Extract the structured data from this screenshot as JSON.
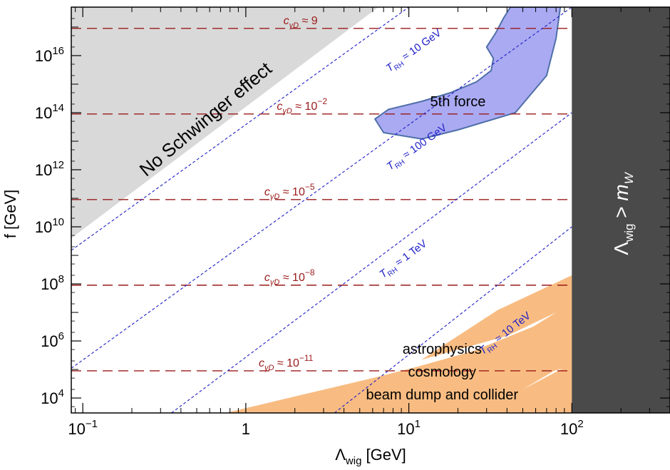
{
  "chart_data": {
    "type": "area",
    "xscale": "log",
    "yscale": "log",
    "xlim": [
      0.085,
      400
    ],
    "ylim": [
      3000,
      5e+17
    ],
    "xlabel": {
      "main": "Λ",
      "sub": "wig",
      "rest": " [GeV]"
    },
    "ylabel": "f [GeV]",
    "x_ticks": [
      {
        "value": 0.1,
        "base": "10",
        "exp": "−1"
      },
      {
        "value": 1,
        "base": "1",
        "exp": ""
      },
      {
        "value": 10,
        "base": "10",
        "exp": "1"
      },
      {
        "value": 100,
        "base": "10",
        "exp": "2"
      }
    ],
    "y_ticks": [
      {
        "value": 10000.0,
        "base": "10",
        "exp": "4"
      },
      {
        "value": 1000000.0,
        "base": "10",
        "exp": "6"
      },
      {
        "value": 100000000.0,
        "base": "10",
        "exp": "8"
      },
      {
        "value": 10000000000.0,
        "base": "10",
        "exp": "10"
      },
      {
        "value": 1000000000000.0,
        "base": "10",
        "exp": "12"
      },
      {
        "value": 100000000000000.0,
        "base": "10",
        "exp": "14"
      },
      {
        "value": 1e+16,
        "base": "10",
        "exp": "16"
      }
    ],
    "regions": {
      "no_schwinger": {
        "label": "No Schwinger effect",
        "color": "#d9d9d9",
        "points": [
          [
            0.085,
            5e+17
          ],
          [
            6.5,
            5e+17
          ],
          [
            0.085,
            4000000000.0
          ]
        ]
      },
      "fifth_force": {
        "label": "5th force",
        "color": "#aaaaf2",
        "edge": "#4f6fa8",
        "points": [
          [
            42,
            5e+17
          ],
          [
            85,
            5e+17
          ],
          [
            80,
            4e+16
          ],
          [
            70,
            2000000000000000.0
          ],
          [
            45,
            100000000000000.0
          ],
          [
            20,
            25000000000000.0
          ],
          [
            12,
            12000000000000.0
          ],
          [
            7,
            20000000000000.0
          ],
          [
            6.2,
            60000000000000.0
          ],
          [
            7.5,
            130000000000000.0
          ],
          [
            12,
            250000000000000.0
          ],
          [
            18,
            500000000000000.0
          ],
          [
            26,
            1200000000000000.0
          ],
          [
            32,
            3000000000000000.0
          ],
          [
            33,
            8000000000000000.0
          ],
          [
            30,
            2e+16
          ],
          [
            34,
            6e+16
          ],
          [
            38,
            2e+17
          ]
        ]
      },
      "astro": {
        "labels": [
          "astrophysics",
          "cosmology",
          "beam dump and collider"
        ],
        "color": "#f8bc82",
        "points": [
          [
            0.75,
            3000
          ],
          [
            100,
            3000
          ],
          [
            100,
            160000.0
          ],
          [
            50,
            20000.0
          ],
          [
            78,
            90000.0
          ],
          [
            100,
            130000.0
          ],
          [
            100,
            200000000.0
          ],
          [
            35,
            12000000.0
          ],
          [
            14,
            400000.0
          ],
          [
            12,
            220000.0
          ],
          [
            20,
            500000.0
          ],
          [
            40,
            1500000.0
          ],
          [
            80,
            10000000.0
          ],
          [
            58,
            3200000.0
          ],
          [
            25,
            450000.0
          ],
          [
            11,
            120000.0
          ],
          [
            6,
            50000.0
          ]
        ]
      },
      "mw_band": {
        "label_main": "Λ",
        "label_sub": "wig",
        "label_rel": " > ",
        "label_m": "m",
        "label_msub": "W",
        "color": "#4a4a4a",
        "x_from": 100
      }
    },
    "coupling_lines": [
      {
        "f": 9e+16,
        "base": "c",
        "sub": "γD",
        "rel": " ≈ ",
        "val": "9",
        "exp": "",
        "x_label": 1.7
      },
      {
        "f": 90000000000000.0,
        "base": "c",
        "sub": "γD",
        "rel": " ≈ ",
        "val": "10",
        "exp": "−2",
        "x_label": 1.55
      },
      {
        "f": 90000000000.0,
        "base": "c",
        "sub": "γD",
        "rel": " ≈ ",
        "val": "10",
        "exp": "−5",
        "x_label": 1.3
      },
      {
        "f": 90000000.0,
        "base": "c",
        "sub": "γD",
        "rel": " ≈ ",
        "val": "10",
        "exp": "−8",
        "x_label": 1.3
      },
      {
        "f": 90000.0,
        "base": "c",
        "sub": "γD",
        "rel": " ≈ ",
        "val": "10",
        "exp": "−11",
        "x_label": 1.2
      }
    ],
    "coupling_color": "#9b1a1a",
    "reheating_lines": [
      {
        "name": "10 GeV",
        "p1": [
          0.085,
          1500000000.0
        ],
        "p2": [
          10,
          5e+17
        ],
        "label_pos": [
          11,
          1.2e+16
        ]
      },
      {
        "name": "100 GeV",
        "p1": [
          0.085,
          110000.0
        ],
        "p2": [
          100,
          5e+17
        ],
        "label_pos": [
          11.5,
          5000000000000.0
        ]
      },
      {
        "name": "1 TeV",
        "p1": [
          0.35,
          3000
        ],
        "p2": [
          100,
          100000000000000.0
        ],
        "label_pos": [
          9.5,
          600000000.0
        ]
      },
      {
        "name": "10 TeV",
        "p1": [
          3.5,
          3000
        ],
        "p2": [
          100,
          10000000000.0
        ],
        "label_pos": [
          40,
          1500000.0
        ]
      }
    ],
    "reheating_prefix": "T",
    "reheating_sub": "RH",
    "reheating_rel": " ≈ ",
    "reheating_color": "#1f1fc8"
  }
}
